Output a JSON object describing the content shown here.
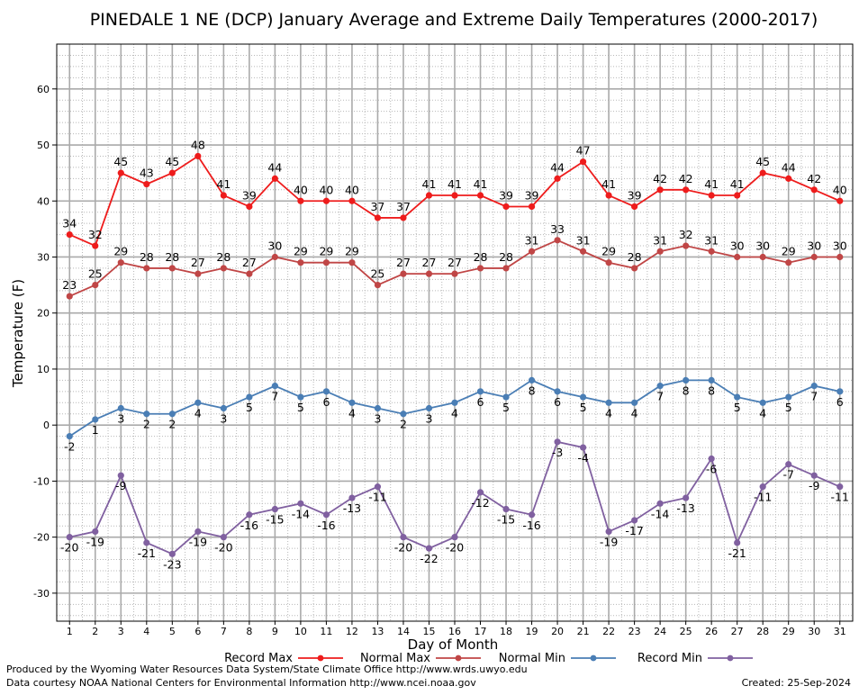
{
  "chart_data": {
    "type": "line",
    "title": "PINEDALE 1 NE (DCP) January Average and Extreme Daily Temperatures (2000-2017)",
    "xlabel": "Day of Month",
    "ylabel": "Temperature (F)",
    "ylim": [
      -35,
      68
    ],
    "xlim": [
      0.5,
      31.5
    ],
    "yticks": [
      -30,
      -20,
      -10,
      0,
      10,
      20,
      30,
      40,
      50,
      60
    ],
    "ytick_labels": [
      "-30",
      "-20",
      "-10",
      "0",
      "10",
      "20",
      "30",
      "40",
      "50",
      "60"
    ],
    "x": [
      1,
      2,
      3,
      4,
      5,
      6,
      7,
      8,
      9,
      10,
      11,
      12,
      13,
      14,
      15,
      16,
      17,
      18,
      19,
      20,
      21,
      22,
      23,
      24,
      25,
      26,
      27,
      28,
      29,
      30,
      31
    ],
    "xtick_labels": [
      "1",
      "2",
      "3",
      "4",
      "5",
      "6",
      "7",
      "8",
      "9",
      "10",
      "11",
      "12",
      "13",
      "14",
      "15",
      "16",
      "17",
      "18",
      "19",
      "20",
      "21",
      "22",
      "23",
      "24",
      "25",
      "26",
      "27",
      "28",
      "29",
      "30",
      "31"
    ],
    "grid": true,
    "legend_position": "bottom",
    "series": [
      {
        "name": "Record Max",
        "color": "#ee1c1c",
        "label_position": "above",
        "values": [
          34,
          32,
          45,
          43,
          45,
          48,
          41,
          39,
          44,
          40,
          40,
          40,
          37,
          37,
          41,
          41,
          41,
          39,
          39,
          44,
          47,
          41,
          39,
          42,
          42,
          41,
          41,
          45,
          44,
          42,
          40
        ],
        "labels": [
          "34",
          "32",
          "45",
          "43",
          "45",
          "48",
          "41",
          "39",
          "44",
          "40",
          "40",
          "40",
          "37",
          "37",
          "41",
          "41",
          "41",
          "39",
          "39",
          "44",
          "47",
          "41",
          "39",
          "42",
          "42",
          "41",
          "41",
          "45",
          "44",
          "42",
          "40"
        ]
      },
      {
        "name": "Normal Max",
        "color": "#c04646",
        "label_position": "above",
        "values": [
          23,
          25,
          29,
          28,
          28,
          27,
          28,
          27,
          30,
          29,
          29,
          29,
          25,
          27,
          27,
          27,
          28,
          28,
          31,
          33,
          31,
          29,
          28,
          31,
          32,
          31,
          30,
          30,
          29,
          30,
          30
        ],
        "labels": [
          "23",
          "25",
          "29",
          "28",
          "28",
          "27",
          "28",
          "27",
          "30",
          "29",
          "29",
          "29",
          "25",
          "27",
          "27",
          "27",
          "28",
          "28",
          "31",
          "33",
          "31",
          "29",
          "28",
          "31",
          "32",
          "31",
          "30",
          "30",
          "29",
          "30",
          "30"
        ]
      },
      {
        "name": "Normal Min",
        "color": "#4a7eb5",
        "label_position": "below",
        "values": [
          -2,
          1,
          3,
          2,
          2,
          4,
          3,
          5,
          7,
          5,
          6,
          4,
          3,
          2,
          3,
          4,
          6,
          5,
          8,
          6,
          5,
          4,
          4,
          7,
          8,
          8,
          5,
          4,
          5,
          7,
          6
        ],
        "labels": [
          "-2",
          "1",
          "3",
          "2",
          "2",
          "4",
          "3",
          "5",
          "7",
          "5",
          "6",
          "4",
          "3",
          "2",
          "3",
          "4",
          "6",
          "5",
          "8",
          "6",
          "5",
          "4",
          "4",
          "7",
          "8",
          "8",
          "5",
          "4",
          "5",
          "7",
          "6"
        ]
      },
      {
        "name": "Record Min",
        "color": "#8060a0",
        "label_position": "below",
        "values": [
          -20,
          -19,
          -9,
          -21,
          -23,
          -19,
          -20,
          -16,
          -15,
          -14,
          -16,
          -13,
          -11,
          -20,
          -22,
          -20,
          -12,
          -15,
          -16,
          -3,
          -4,
          -19,
          -17,
          -14,
          -13,
          -6,
          -21,
          -11,
          -7,
          -9,
          -11
        ],
        "labels": [
          "-20",
          "-19",
          "-9",
          "-21",
          "-23",
          "-19",
          "-20",
          "-16",
          "-15",
          "-14",
          "-16",
          "-13",
          "-11",
          "-20",
          "-22",
          "-20",
          "-12",
          "-15",
          "-16",
          "-3",
          "-4",
          "-19",
          "-17",
          "-14",
          "-13",
          "-6",
          "-21",
          "-11",
          "-7",
          "-9",
          "-11"
        ]
      }
    ]
  },
  "footer": {
    "produced_by": "Produced by the Wyoming Water Resources Data System/State Climate Office http://www.wrds.uwyo.edu",
    "courtesy": "Data courtesy NOAA National Centers for Environmental Information http://www.ncei.noaa.gov",
    "created": "Created:  25-Sep-2024"
  }
}
